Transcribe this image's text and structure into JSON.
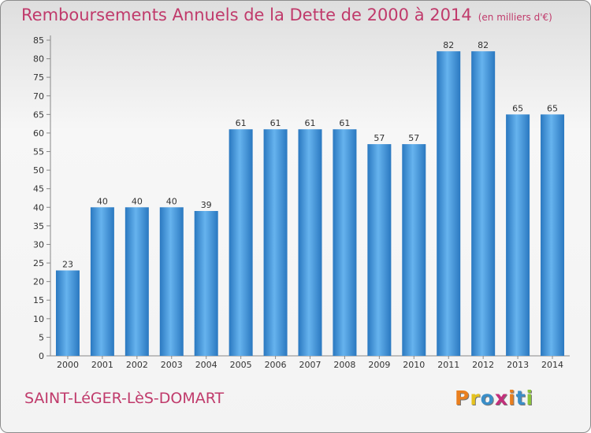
{
  "header": {
    "title": "Remboursements Annuels de la Dette de 2000 à 2014",
    "unit": "(en milliers d'€)"
  },
  "footer": {
    "town": "SAINT-LéGER-LèS-DOMART",
    "logo_text": "Proxiti",
    "logo_colors": [
      "#e97f1f",
      "#e5c21f",
      "#3a8ec8",
      "#c32f7b",
      "#e97f1f",
      "#3a8ec8",
      "#8cc43a"
    ]
  },
  "colors": {
    "bar": "#4d9ad8",
    "bar_light": "#66b3ee",
    "bar_dark": "#2a78c0",
    "text": "#333333",
    "accent": "#c03a6b"
  },
  "chart_data": {
    "type": "bar",
    "categories": [
      "2000",
      "2001",
      "2002",
      "2003",
      "2004",
      "2005",
      "2006",
      "2007",
      "2008",
      "2009",
      "2010",
      "2011",
      "2012",
      "2013",
      "2014"
    ],
    "values": [
      23,
      40,
      40,
      40,
      39,
      61,
      61,
      61,
      61,
      57,
      57,
      82,
      82,
      65,
      65
    ],
    "title": "Remboursements Annuels de la Dette de 2000 à 2014",
    "ylim": [
      0,
      85
    ],
    "yticks": [
      0,
      5,
      10,
      15,
      20,
      25,
      30,
      35,
      40,
      45,
      50,
      55,
      60,
      65,
      70,
      75,
      80,
      85
    ],
    "grid": false,
    "data_labels": true
  }
}
